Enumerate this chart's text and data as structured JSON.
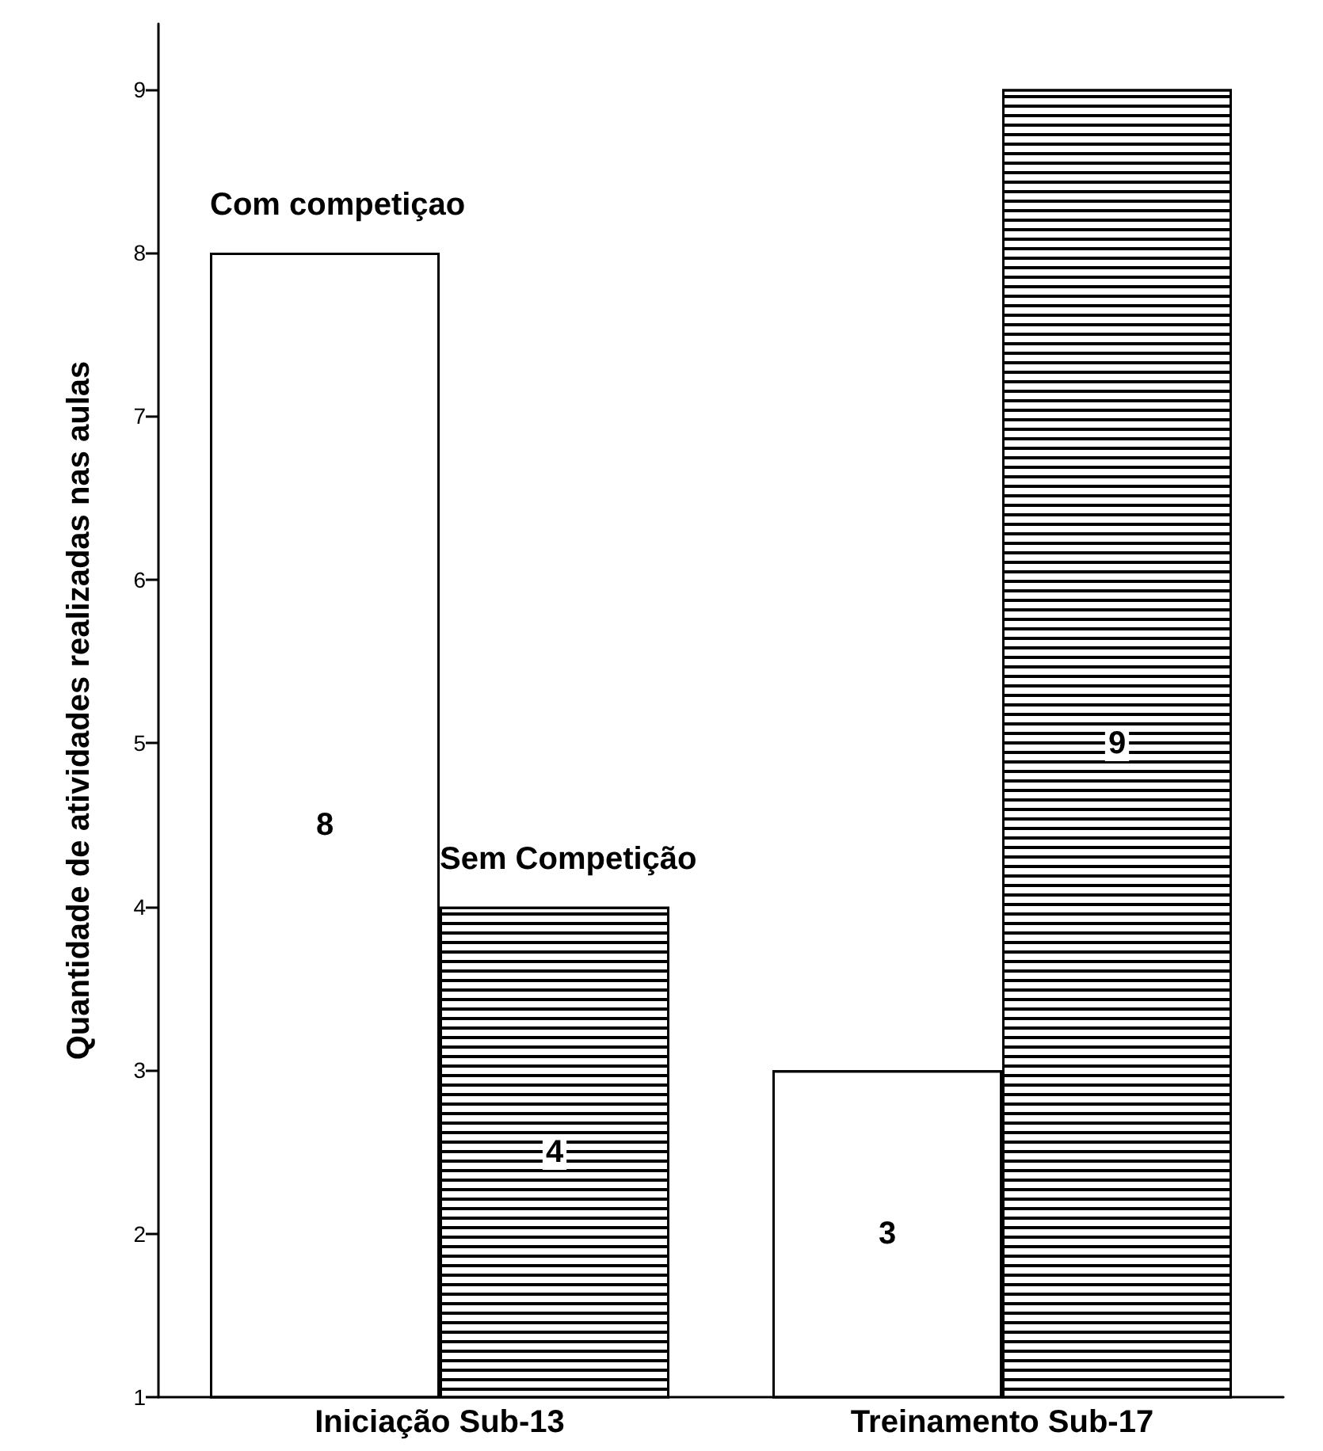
{
  "chart_data": {
    "type": "bar",
    "ylabel": "Quantidade de atividades realizadas nas aulas",
    "categories": [
      "Iniciação Sub-13",
      "Treinamento Sub-17"
    ],
    "series": [
      {
        "name": "Com competiçao",
        "color": "#ffffff",
        "values": [
          8,
          3
        ]
      },
      {
        "name": "Sem Competição",
        "color": "#000000",
        "values": [
          4,
          9
        ]
      }
    ],
    "ylim": [
      1,
      9.4
    ],
    "yticks": [
      1,
      2,
      3,
      4,
      5,
      6,
      7,
      8,
      9
    ],
    "grid": false,
    "legend": false,
    "data_labels": true
  }
}
